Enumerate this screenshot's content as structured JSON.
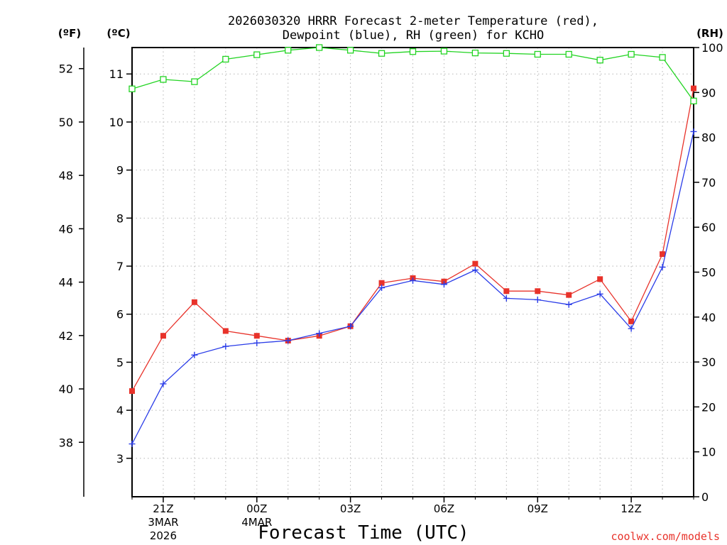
{
  "chart_data": {
    "type": "line",
    "title_line1": "2026030320 HRRR Forecast 2-meter Temperature (red),",
    "title_line2": "Dewpoint (blue), RH (green) for KCHO",
    "xlabel": "Forecast Time (UTC)",
    "credit": "coolwx.com/models",
    "units": {
      "fahrenheit": "(ºF)",
      "celsius": "(ºC)",
      "rh": "(RH)"
    },
    "colors": {
      "temperature": "#e8322a",
      "dewpoint": "#2a3ce8",
      "rh": "#22d422"
    },
    "hours": [
      20,
      21,
      22,
      23,
      0,
      1,
      2,
      3,
      4,
      5,
      6,
      7,
      8,
      9,
      10,
      11,
      12,
      13,
      14
    ],
    "x_ticks": [
      {
        "hour": 21,
        "label": "21Z",
        "date1": "3MAR",
        "date2": "2026"
      },
      {
        "hour": 0,
        "label": "00Z",
        "date1": "4MAR",
        "date2": ""
      },
      {
        "hour": 3,
        "label": "03Z",
        "date1": "",
        "date2": ""
      },
      {
        "hour": 6,
        "label": "06Z",
        "date1": "",
        "date2": ""
      },
      {
        "hour": 9,
        "label": "09Z",
        "date1": "",
        "date2": ""
      },
      {
        "hour": 12,
        "label": "12Z",
        "date1": "",
        "date2": ""
      }
    ],
    "ylim_c": [
      2.2,
      11.55
    ],
    "ylim_rh": [
      0,
      100
    ],
    "celsius_ticks": [
      "3",
      "4",
      "5",
      "6",
      "7",
      "8",
      "9",
      "10",
      "11"
    ],
    "fahrenheit_ticks": [
      "38",
      "40",
      "42",
      "44",
      "46",
      "48",
      "50",
      "52"
    ],
    "rh_ticks": [
      "0",
      "10",
      "20",
      "30",
      "40",
      "50",
      "60",
      "70",
      "80",
      "90",
      "100"
    ],
    "series": [
      {
        "name": "Temperature",
        "unit": "C",
        "values": [
          4.4,
          5.55,
          6.25,
          5.65,
          5.55,
          5.45,
          5.55,
          5.75,
          6.65,
          6.75,
          6.68,
          7.05,
          6.48,
          6.48,
          6.4,
          6.73,
          5.85,
          7.25,
          10.7
        ]
      },
      {
        "name": "Dewpoint",
        "unit": "C",
        "values": [
          3.3,
          4.55,
          5.15,
          5.33,
          5.4,
          5.45,
          5.6,
          5.75,
          6.55,
          6.7,
          6.62,
          6.92,
          6.33,
          6.3,
          6.2,
          6.42,
          5.7,
          6.98,
          9.8
        ]
      },
      {
        "name": "RH",
        "unit": "%",
        "values": [
          90.8,
          92.9,
          92.4,
          97.4,
          98.4,
          99.4,
          100,
          99.4,
          98.7,
          99.1,
          99.2,
          98.8,
          98.7,
          98.5,
          98.5,
          97.2,
          98.5,
          97.8,
          88.1
        ]
      }
    ]
  }
}
